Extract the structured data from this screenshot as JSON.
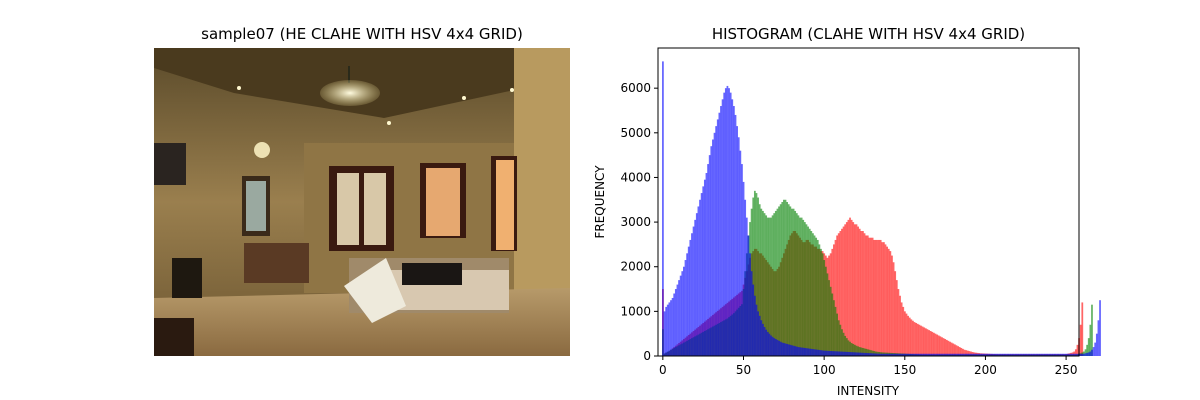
{
  "image_panel": {
    "title": "sample07 (HE CLAHE WITH HSV 4x4 GRID)"
  },
  "chart_data": {
    "type": "histogram",
    "title": "HISTOGRAM (CLAHE WITH HSV 4x4 GRID)",
    "xlabel": "INTENSITY",
    "ylabel": "FREQUENCY",
    "xlim": [
      -3,
      258
    ],
    "ylim": [
      0,
      6900
    ],
    "xticks": [
      0,
      50,
      100,
      150,
      200,
      250
    ],
    "yticks": [
      0,
      1000,
      2000,
      3000,
      4000,
      5000,
      6000
    ],
    "grid": false,
    "legend": "none",
    "alpha": 0.6,
    "series": [
      {
        "color": "#ff0000",
        "values": [
          1500,
          50,
          70,
          90,
          110,
          140,
          170,
          200,
          230,
          260,
          290,
          320,
          350,
          380,
          410,
          440,
          470,
          500,
          530,
          560,
          590,
          620,
          650,
          680,
          710,
          740,
          770,
          800,
          830,
          860,
          890,
          920,
          950,
          980,
          1010,
          1040,
          1070,
          1100,
          1130,
          1160,
          1190,
          1220,
          1250,
          1280,
          1310,
          1340,
          1370,
          1400,
          1430,
          1460,
          1600,
          1750,
          1900,
          2050,
          2200,
          2300,
          2350,
          2400,
          2400,
          2350,
          2300,
          2300,
          2250,
          2200,
          2150,
          2100,
          2050,
          2000,
          1950,
          1900,
          1900,
          1950,
          2000,
          2100,
          2200,
          2300,
          2400,
          2500,
          2600,
          2700,
          2750,
          2800,
          2800,
          2750,
          2700,
          2650,
          2600,
          2550,
          2550,
          2600,
          2600,
          2550,
          2500,
          2500,
          2450,
          2450,
          2400,
          2400,
          2350,
          2350,
          2300,
          2250,
          2200,
          2250,
          2300,
          2400,
          2500,
          2600,
          2700,
          2750,
          2800,
          2850,
          2900,
          2950,
          3000,
          3050,
          3100,
          3050,
          3000,
          2950,
          2950,
          2900,
          2850,
          2800,
          2800,
          2750,
          2700,
          2700,
          2650,
          2650,
          2650,
          2600,
          2600,
          2600,
          2600,
          2600,
          2550,
          2550,
          2500,
          2450,
          2400,
          2350,
          2250,
          2100,
          1900,
          1700,
          1500,
          1350,
          1200,
          1100,
          1000,
          950,
          900,
          860,
          820,
          790,
          760,
          740,
          720,
          700,
          680,
          660,
          640,
          620,
          600,
          580,
          560,
          540,
          520,
          500,
          480,
          460,
          440,
          420,
          400,
          380,
          360,
          340,
          320,
          300,
          280,
          260,
          240,
          220,
          200,
          180,
          160,
          140,
          130,
          120,
          110,
          100,
          90,
          80,
          75,
          70,
          65,
          60,
          58,
          56,
          54,
          52,
          50,
          48,
          46,
          44,
          42,
          40,
          40,
          40,
          40,
          40,
          40,
          40,
          40,
          40,
          40,
          40,
          40,
          40,
          40,
          40,
          40,
          40,
          40,
          40,
          40,
          40,
          40,
          40,
          40,
          40,
          40,
          40,
          40,
          40,
          40,
          40,
          40,
          40,
          40,
          40,
          40,
          40,
          40,
          40,
          40,
          40,
          40,
          40,
          40,
          50,
          60,
          70,
          80,
          100,
          150,
          250,
          400,
          700,
          1200
        ]
      },
      {
        "color": "#008000",
        "values": [
          600,
          60,
          80,
          100,
          120,
          140,
          160,
          180,
          200,
          220,
          240,
          260,
          280,
          300,
          320,
          340,
          360,
          380,
          400,
          420,
          440,
          460,
          480,
          500,
          520,
          540,
          560,
          580,
          600,
          620,
          640,
          660,
          680,
          700,
          720,
          740,
          760,
          780,
          800,
          820,
          840,
          870,
          900,
          930,
          960,
          1000,
          1040,
          1080,
          1120,
          1160,
          1500,
          1900,
          2300,
          2700,
          3000,
          3300,
          3550,
          3700,
          3650,
          3550,
          3400,
          3300,
          3250,
          3200,
          3150,
          3100,
          3100,
          3100,
          3150,
          3200,
          3250,
          3300,
          3350,
          3400,
          3450,
          3500,
          3500,
          3450,
          3400,
          3350,
          3300,
          3300,
          3250,
          3200,
          3150,
          3100,
          3100,
          3050,
          3000,
          2950,
          2900,
          2850,
          2800,
          2750,
          2700,
          2650,
          2600,
          2500,
          2400,
          2300,
          2150,
          2000,
          1850,
          1700,
          1550,
          1400,
          1250,
          1100,
          950,
          800,
          700,
          600,
          520,
          450,
          400,
          350,
          320,
          290,
          270,
          250,
          230,
          215,
          200,
          190,
          180,
          170,
          160,
          150,
          140,
          130,
          120,
          110,
          100,
          95,
          90,
          85,
          80,
          78,
          76,
          74,
          72,
          70,
          68,
          66,
          64,
          62,
          60,
          58,
          56,
          54,
          52,
          50,
          48,
          46,
          44,
          42,
          40,
          38,
          36,
          34,
          32,
          30,
          30,
          30,
          30,
          30,
          30,
          30,
          30,
          30,
          30,
          30,
          30,
          30,
          30,
          30,
          30,
          30,
          30,
          30,
          30,
          30,
          30,
          30,
          30,
          30,
          30,
          30,
          30,
          30,
          30,
          30,
          30,
          30,
          30,
          30,
          30,
          30,
          30,
          30,
          30,
          30,
          30,
          30,
          30,
          30,
          30,
          30,
          30,
          30,
          30,
          30,
          30,
          30,
          30,
          30,
          30,
          30,
          30,
          30,
          30,
          30,
          30,
          30,
          30,
          30,
          30,
          30,
          30,
          30,
          30,
          30,
          30,
          30,
          30,
          30,
          30,
          30,
          30,
          30,
          30,
          30,
          30,
          30,
          30,
          30,
          30,
          30,
          30,
          30,
          30,
          30,
          30,
          30,
          30,
          30,
          30,
          40,
          50,
          60,
          80,
          100,
          150,
          250,
          400,
          700,
          1150
        ]
      },
      {
        "color": "#0000ff",
        "values": [
          6600,
          1000,
          1100,
          1150,
          1200,
          1250,
          1300,
          1400,
          1500,
          1600,
          1700,
          1800,
          1900,
          2000,
          2150,
          2300,
          2450,
          2600,
          2750,
          2900,
          3050,
          3200,
          3350,
          3500,
          3650,
          3800,
          3950,
          4100,
          4300,
          4500,
          4700,
          4850,
          5000,
          5150,
          5300,
          5450,
          5600,
          5750,
          5900,
          6000,
          6050,
          6000,
          5900,
          5750,
          5600,
          5400,
          5150,
          4900,
          4600,
          4300,
          3900,
          3500,
          3100,
          2700,
          2300,
          1900,
          1600,
          1350,
          1150,
          1000,
          900,
          800,
          720,
          650,
          590,
          540,
          500,
          460,
          430,
          400,
          380,
          360,
          340,
          320,
          300,
          290,
          280,
          270,
          260,
          250,
          240,
          230,
          220,
          210,
          200,
          195,
          190,
          185,
          180,
          175,
          170,
          165,
          160,
          155,
          150,
          145,
          140,
          135,
          130,
          125,
          120,
          118,
          116,
          114,
          112,
          110,
          108,
          106,
          104,
          102,
          100,
          98,
          96,
          94,
          92,
          90,
          88,
          86,
          84,
          82,
          80,
          78,
          76,
          74,
          72,
          70,
          68,
          66,
          64,
          62,
          60,
          58,
          56,
          54,
          52,
          50,
          50,
          50,
          50,
          50,
          50,
          50,
          50,
          50,
          50,
          50,
          50,
          50,
          50,
          50,
          50,
          50,
          50,
          50,
          50,
          50,
          50,
          50,
          50,
          50,
          50,
          50,
          50,
          50,
          50,
          50,
          50,
          50,
          50,
          50,
          50,
          50,
          50,
          50,
          50,
          50,
          50,
          50,
          50,
          50,
          50,
          50,
          50,
          50,
          50,
          50,
          50,
          50,
          50,
          50,
          50,
          50,
          50,
          50,
          50,
          50,
          50,
          50,
          50,
          50,
          50,
          50,
          50,
          50,
          50,
          50,
          50,
          50,
          50,
          50,
          50,
          50,
          50,
          50,
          50,
          50,
          50,
          50,
          50,
          50,
          50,
          50,
          50,
          50,
          50,
          50,
          50,
          50,
          50,
          50,
          50,
          50,
          50,
          50,
          50,
          50,
          50,
          50,
          50,
          50,
          50,
          50,
          50,
          50,
          50,
          50,
          50,
          50,
          50,
          50,
          50,
          50,
          50,
          50,
          50,
          50,
          50,
          50,
          50,
          50,
          50,
          50,
          60,
          70,
          80,
          100,
          140,
          200,
          300,
          500,
          800,
          1250
        ]
      }
    ]
  }
}
